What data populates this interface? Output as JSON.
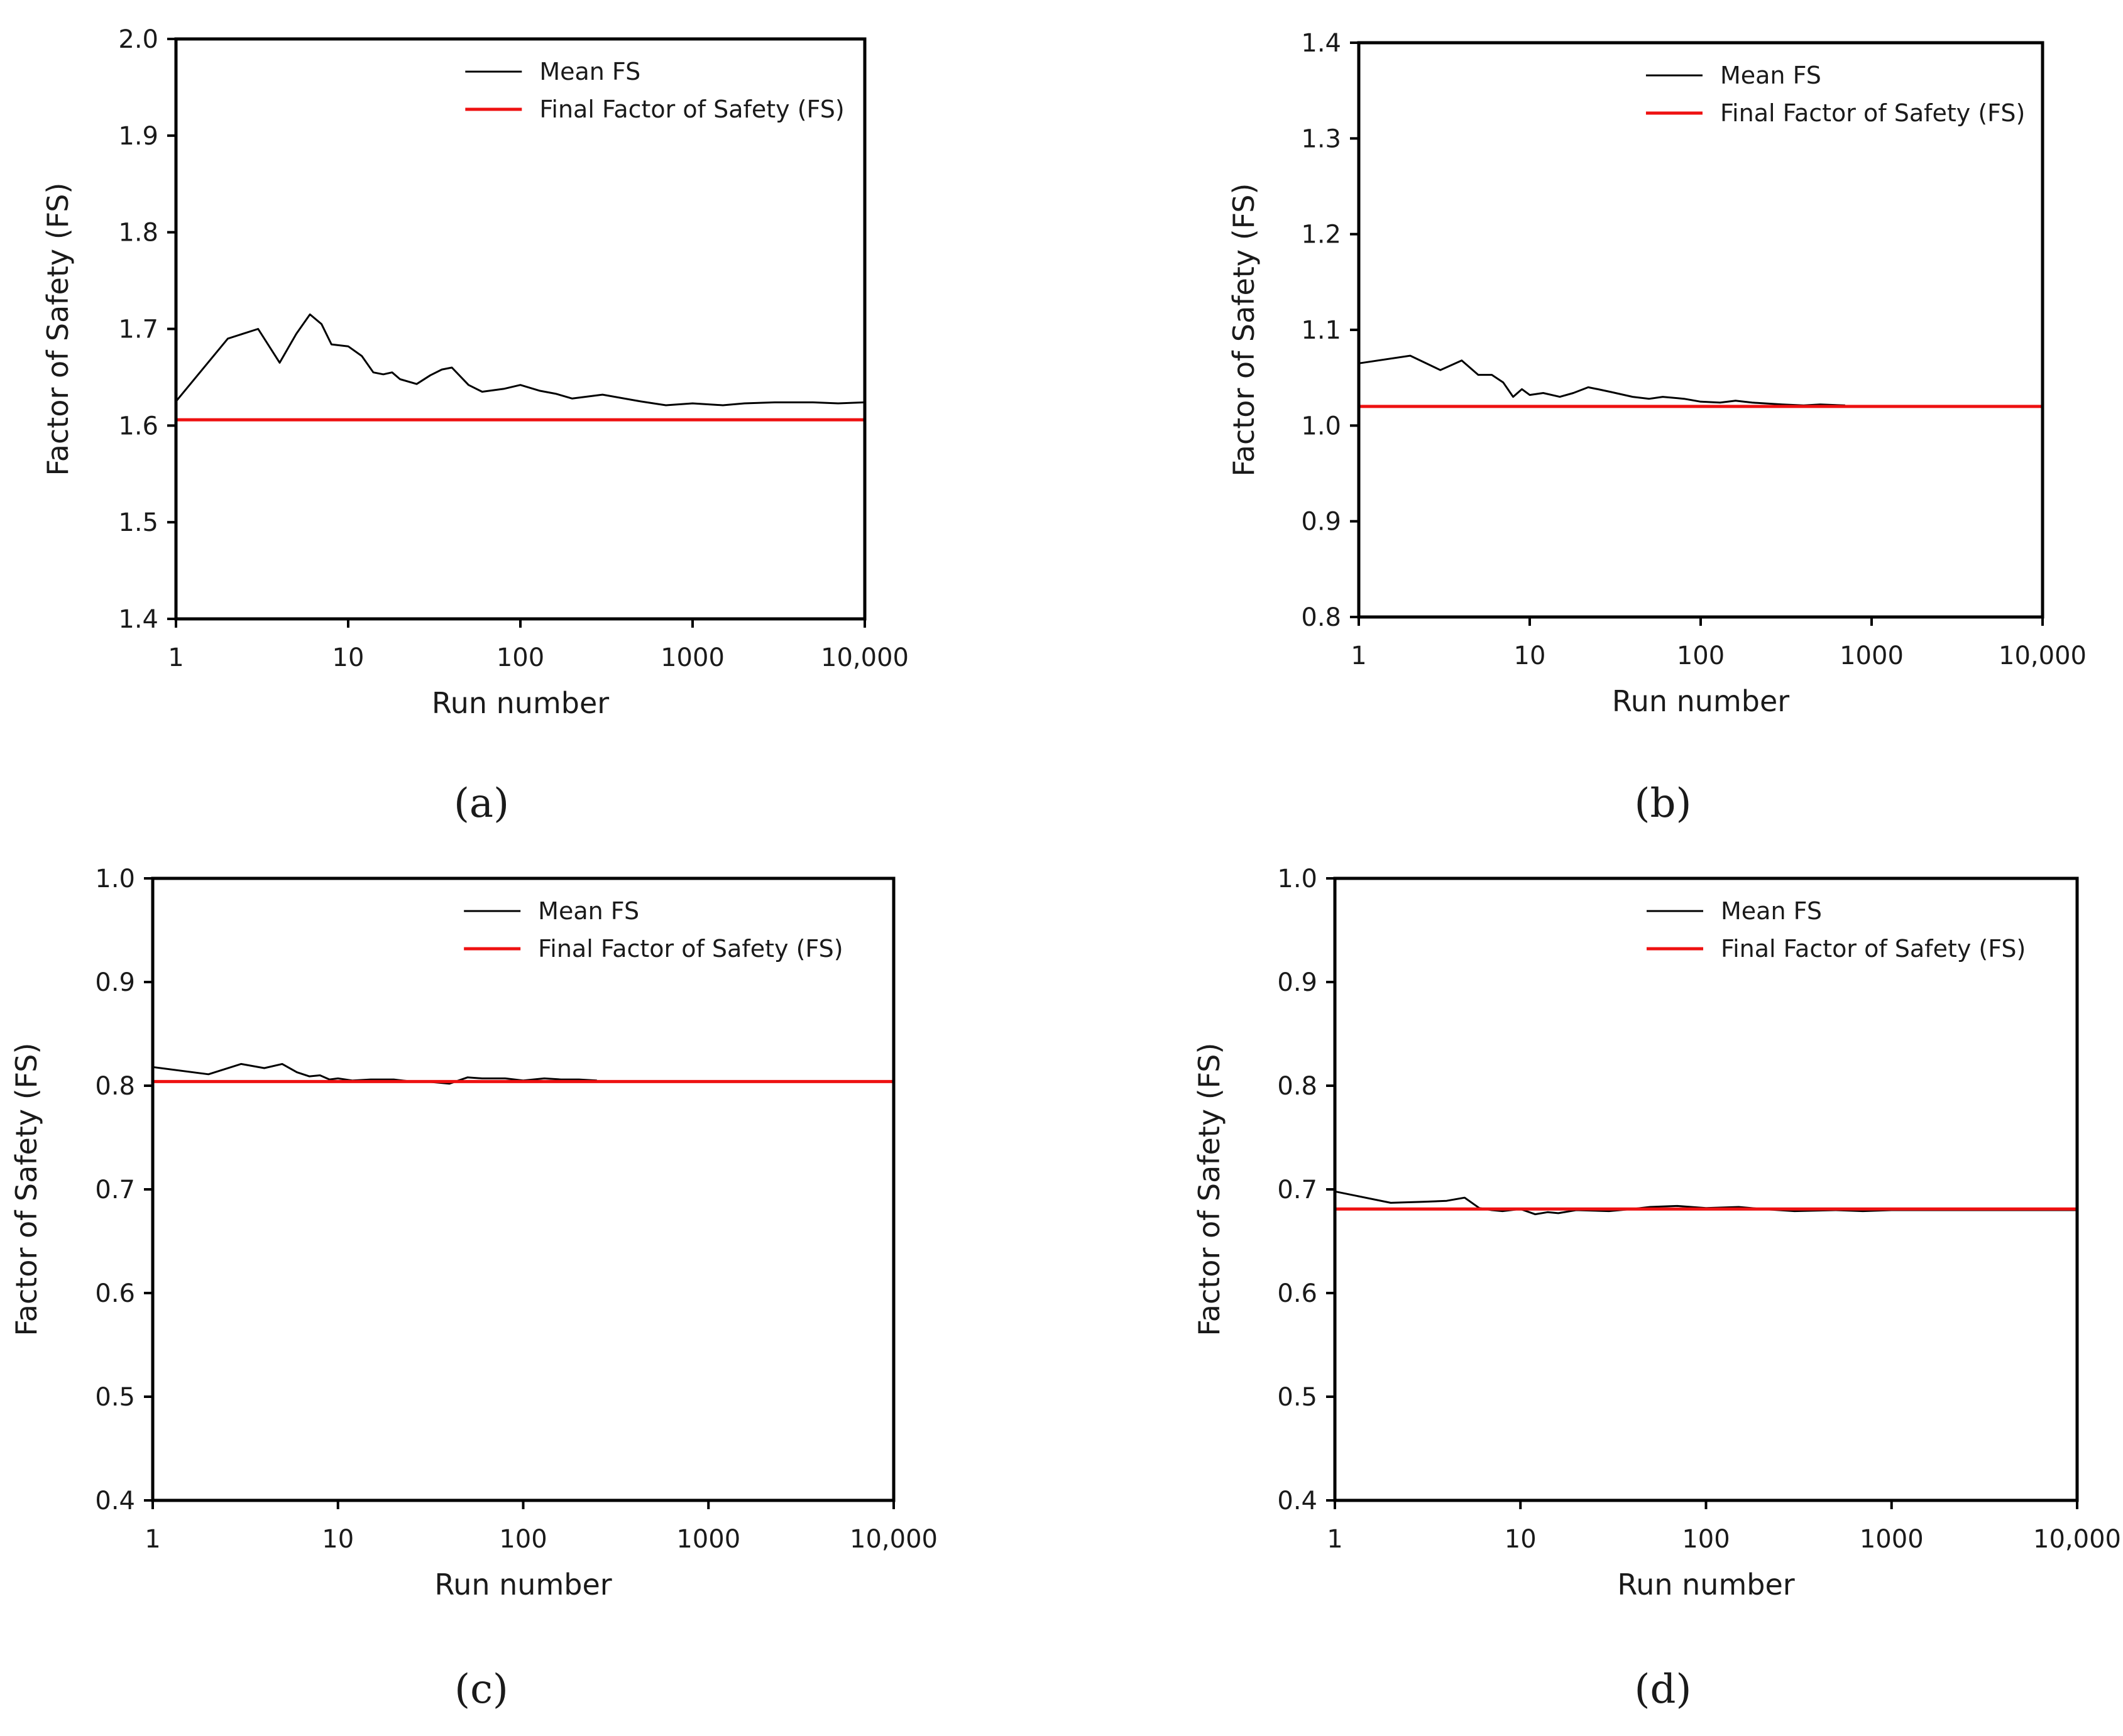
{
  "chart_data": [
    {
      "panel": "(a)",
      "type": "line",
      "x_scale": "log",
      "xlabel": "Run number",
      "ylabel": "Factor of Safety (FS)",
      "xlim": [
        1,
        10000
      ],
      "ylim": [
        1.4,
        2.0
      ],
      "x_ticks": [
        1,
        10,
        100,
        1000,
        10000
      ],
      "x_tick_labels": [
        "1",
        "10",
        "100",
        "1000",
        "10,000"
      ],
      "y_ticks": [
        1.4,
        1.5,
        1.6,
        1.7,
        1.8,
        1.9,
        2.0
      ],
      "y_tick_labels": [
        "1.4",
        "1.5",
        "1.6",
        "1.7",
        "1.8",
        "1.9",
        "2.0"
      ],
      "legend_position": "top-right",
      "series": [
        {
          "name": "Mean FS",
          "color": "#000000",
          "x": [
            1,
            2,
            3,
            4,
            5,
            6,
            7,
            8,
            10,
            12,
            14,
            16,
            18,
            20,
            25,
            30,
            35,
            40,
            50,
            60,
            80,
            100,
            130,
            160,
            200,
            300,
            500,
            700,
            1000,
            1500,
            2000,
            3000,
            5000,
            7000,
            10000
          ],
          "y": [
            1.625,
            1.69,
            1.7,
            1.665,
            1.695,
            1.715,
            1.705,
            1.684,
            1.682,
            1.672,
            1.655,
            1.653,
            1.655,
            1.648,
            1.643,
            1.652,
            1.658,
            1.66,
            1.642,
            1.635,
            1.638,
            1.642,
            1.636,
            1.633,
            1.628,
            1.632,
            1.625,
            1.621,
            1.623,
            1.621,
            1.623,
            1.624,
            1.624,
            1.623,
            1.624
          ]
        },
        {
          "name": "Final Factor of Safety (FS)",
          "color": "#ee1111",
          "x": [
            1,
            10000
          ],
          "y": [
            1.606,
            1.606
          ]
        }
      ]
    },
    {
      "panel": "(b)",
      "type": "line",
      "x_scale": "log",
      "xlabel": "Run number",
      "ylabel": "Factor of Safety (FS)",
      "xlim": [
        1,
        10000
      ],
      "ylim": [
        0.8,
        1.4
      ],
      "x_ticks": [
        1,
        10,
        100,
        1000,
        10000
      ],
      "x_tick_labels": [
        "1",
        "10",
        "100",
        "1000",
        "10,000"
      ],
      "y_ticks": [
        0.8,
        0.9,
        1.0,
        1.1,
        1.2,
        1.3,
        1.4
      ],
      "y_tick_labels": [
        "0.8",
        "0.9",
        "1.0",
        "1.1",
        "1.2",
        "1.3",
        "1.4"
      ],
      "legend_position": "top-right",
      "series": [
        {
          "name": "Mean FS",
          "color": "#000000",
          "x": [
            1,
            2,
            3,
            4,
            5,
            6,
            7,
            8,
            9,
            10,
            12,
            15,
            18,
            22,
            25,
            30,
            40,
            50,
            60,
            80,
            100,
            130,
            160,
            200,
            300,
            400,
            500,
            700
          ],
          "y": [
            1.065,
            1.073,
            1.058,
            1.068,
            1.053,
            1.053,
            1.045,
            1.03,
            1.038,
            1.032,
            1.034,
            1.03,
            1.034,
            1.04,
            1.038,
            1.035,
            1.03,
            1.028,
            1.03,
            1.028,
            1.025,
            1.024,
            1.026,
            1.024,
            1.022,
            1.021,
            1.022,
            1.021
          ]
        },
        {
          "name": "Final Factor of Safety (FS)",
          "color": "#ee1111",
          "x": [
            1,
            10000
          ],
          "y": [
            1.02,
            1.02
          ]
        }
      ]
    },
    {
      "panel": "(c)",
      "type": "line",
      "x_scale": "log",
      "xlabel": "Run number",
      "ylabel": "Factor of Safety (FS)",
      "xlim": [
        1,
        10000
      ],
      "ylim": [
        0.4,
        1.0
      ],
      "x_ticks": [
        1,
        10,
        100,
        1000,
        10000
      ],
      "x_tick_labels": [
        "1",
        "10",
        "100",
        "1000",
        "10,000"
      ],
      "y_ticks": [
        0.4,
        0.5,
        0.6,
        0.7,
        0.8,
        0.9,
        1.0
      ],
      "y_tick_labels": [
        "0.4",
        "0.5",
        "0.6",
        "0.7",
        "0.8",
        "0.9",
        "1.0"
      ],
      "legend_position": "top-right",
      "series": [
        {
          "name": "Mean FS",
          "color": "#000000",
          "x": [
            1,
            2,
            3,
            4,
            5,
            6,
            7,
            8,
            9,
            10,
            12,
            15,
            20,
            25,
            30,
            40,
            50,
            60,
            80,
            100,
            130,
            160,
            200,
            250
          ],
          "y": [
            0.818,
            0.811,
            0.821,
            0.817,
            0.821,
            0.813,
            0.809,
            0.81,
            0.806,
            0.807,
            0.805,
            0.806,
            0.806,
            0.804,
            0.804,
            0.802,
            0.808,
            0.807,
            0.807,
            0.805,
            0.807,
            0.806,
            0.806,
            0.805
          ]
        },
        {
          "name": "Final Factor of Safety (FS)",
          "color": "#ee1111",
          "x": [
            1,
            10000
          ],
          "y": [
            0.804,
            0.804
          ]
        }
      ]
    },
    {
      "panel": "(d)",
      "type": "line",
      "x_scale": "log",
      "xlabel": "Run number",
      "ylabel": "Factor of Safety (FS)",
      "xlim": [
        1,
        10000
      ],
      "ylim": [
        0.4,
        1.0
      ],
      "x_ticks": [
        1,
        10,
        100,
        1000,
        10000
      ],
      "x_tick_labels": [
        "1",
        "10",
        "100",
        "1000",
        "10,000"
      ],
      "y_ticks": [
        0.4,
        0.5,
        0.6,
        0.7,
        0.8,
        0.9,
        1.0
      ],
      "y_tick_labels": [
        "0.4",
        "0.5",
        "0.6",
        "0.7",
        "0.8",
        "0.9",
        "1.0"
      ],
      "legend_position": "top-right",
      "series": [
        {
          "name": "Mean FS",
          "color": "#000000",
          "x": [
            1,
            2,
            3,
            4,
            5,
            6,
            7,
            8,
            10,
            12,
            14,
            16,
            20,
            30,
            40,
            50,
            70,
            100,
            150,
            200,
            300,
            500,
            700,
            1000,
            2000,
            5000,
            10000
          ],
          "y": [
            0.698,
            0.687,
            0.688,
            0.689,
            0.692,
            0.682,
            0.68,
            0.679,
            0.681,
            0.676,
            0.678,
            0.677,
            0.68,
            0.679,
            0.681,
            0.683,
            0.684,
            0.682,
            0.683,
            0.681,
            0.679,
            0.68,
            0.679,
            0.68,
            0.68,
            0.68,
            0.68
          ]
        },
        {
          "name": "Final Factor of Safety (FS)",
          "color": "#ee1111",
          "x": [
            1,
            10000
          ],
          "y": [
            0.681,
            0.681
          ]
        }
      ]
    }
  ]
}
